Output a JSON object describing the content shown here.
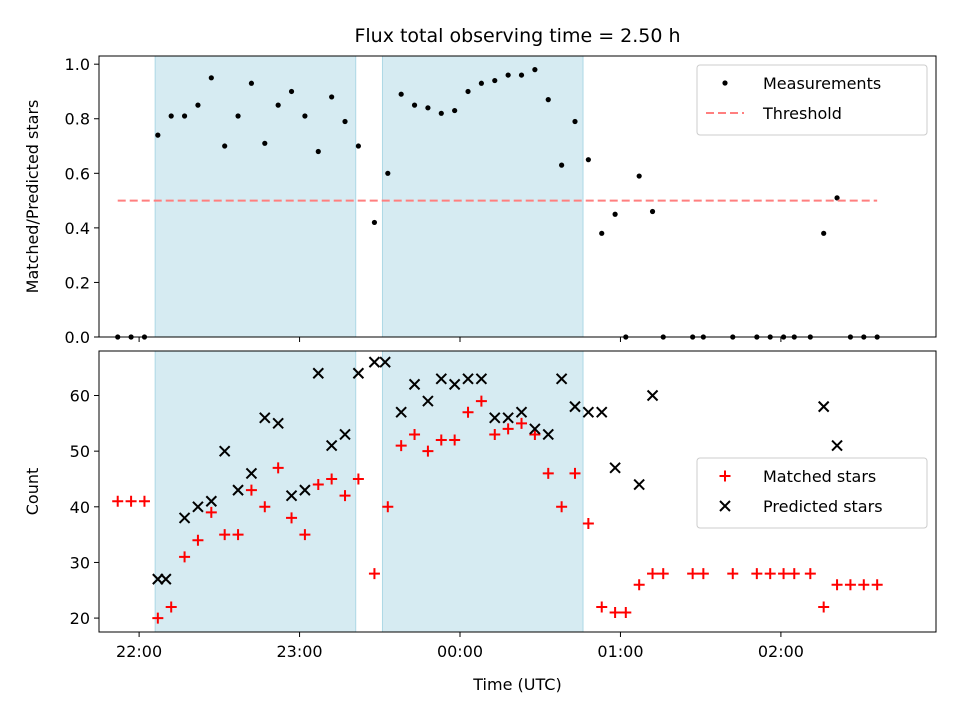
{
  "chart_data": [
    {
      "type": "scatter",
      "title": "Flux total observing time = 2.50 h",
      "xlabel": "",
      "ylabel": "Matched/Predicted stars",
      "xlim": [
        "21:45",
        "02:58"
      ],
      "ylim": [
        0,
        1.03
      ],
      "yticks": [
        "0.0",
        "0.2",
        "0.4",
        "0.6",
        "0.8",
        "1.0"
      ],
      "grid": false,
      "legend_position": "top-right",
      "shaded_intervals": [
        [
          "22:06",
          "23:21"
        ],
        [
          "23:31",
          "00:46"
        ]
      ],
      "shade_color": "#add8e6",
      "series": [
        {
          "name": "Measurements",
          "marker": "dot",
          "color": "#000000",
          "points": [
            [
              "21:52",
              0.0
            ],
            [
              "21:57",
              0.0
            ],
            [
              "22:02",
              0.0
            ],
            [
              "22:07",
              0.74
            ],
            [
              "22:12",
              0.81
            ],
            [
              "22:17",
              0.81
            ],
            [
              "22:22",
              0.85
            ],
            [
              "22:27",
              0.95
            ],
            [
              "22:32",
              0.7
            ],
            [
              "22:37",
              0.81
            ],
            [
              "22:42",
              0.93
            ],
            [
              "22:47",
              0.71
            ],
            [
              "22:52",
              0.85
            ],
            [
              "22:57",
              0.9
            ],
            [
              "23:02",
              0.81
            ],
            [
              "23:07",
              0.68
            ],
            [
              "23:12",
              0.88
            ],
            [
              "23:17",
              0.79
            ],
            [
              "23:22",
              0.7
            ],
            [
              "23:28",
              0.42
            ],
            [
              "23:33",
              0.6
            ],
            [
              "23:38",
              0.89
            ],
            [
              "23:43",
              0.85
            ],
            [
              "23:48",
              0.84
            ],
            [
              "23:53",
              0.82
            ],
            [
              "23:58",
              0.83
            ],
            [
              "00:03",
              0.9
            ],
            [
              "00:08",
              0.93
            ],
            [
              "00:13",
              0.94
            ],
            [
              "00:18",
              0.96
            ],
            [
              "00:23",
              0.96
            ],
            [
              "00:28",
              0.98
            ],
            [
              "00:33",
              0.87
            ],
            [
              "00:38",
              0.63
            ],
            [
              "00:43",
              0.79
            ],
            [
              "00:48",
              0.65
            ],
            [
              "00:53",
              0.38
            ],
            [
              "00:58",
              0.45
            ],
            [
              "01:02",
              0.0
            ],
            [
              "01:07",
              0.59
            ],
            [
              "01:12",
              0.46
            ],
            [
              "01:16",
              0.0
            ],
            [
              "01:27",
              0.0
            ],
            [
              "01:31",
              0.0
            ],
            [
              "01:42",
              0.0
            ],
            [
              "01:51",
              0.0
            ],
            [
              "01:56",
              0.0
            ],
            [
              "02:01",
              0.0
            ],
            [
              "02:05",
              0.0
            ],
            [
              "02:11",
              0.0
            ],
            [
              "02:16",
              0.38
            ],
            [
              "02:21",
              0.51
            ],
            [
              "02:26",
              0.0
            ],
            [
              "02:31",
              0.0
            ],
            [
              "02:36",
              0.0
            ]
          ]
        },
        {
          "name": "Threshold",
          "marker": "dashed-line",
          "color": "#ff7f7f",
          "points": [
            [
              "21:52",
              0.5
            ],
            [
              "02:36",
              0.5
            ]
          ]
        }
      ]
    },
    {
      "type": "scatter",
      "title": "",
      "xlabel": "Time (UTC)",
      "ylabel": "Count",
      "xlim": [
        "21:45",
        "02:58"
      ],
      "ylim": [
        17.5,
        68
      ],
      "xticks": [
        "22:00",
        "23:00",
        "00:00",
        "01:00",
        "02:00"
      ],
      "yticks": [
        "20",
        "30",
        "40",
        "50",
        "60"
      ],
      "grid": false,
      "legend_position": "center-right",
      "shaded_intervals": [
        [
          "22:06",
          "23:21"
        ],
        [
          "23:31",
          "00:46"
        ]
      ],
      "shade_color": "#add8e6",
      "series": [
        {
          "name": "Matched stars",
          "marker": "plus",
          "color": "#ff0000",
          "points": [
            [
              "21:52",
              41
            ],
            [
              "21:57",
              41
            ],
            [
              "22:02",
              41
            ],
            [
              "22:07",
              20
            ],
            [
              "22:12",
              22
            ],
            [
              "22:17",
              31
            ],
            [
              "22:22",
              34
            ],
            [
              "22:27",
              39
            ],
            [
              "22:32",
              35
            ],
            [
              "22:37",
              35
            ],
            [
              "22:42",
              43
            ],
            [
              "22:47",
              40
            ],
            [
              "22:52",
              47
            ],
            [
              "22:57",
              38
            ],
            [
              "23:02",
              35
            ],
            [
              "23:07",
              44
            ],
            [
              "23:12",
              45
            ],
            [
              "23:17",
              42
            ],
            [
              "23:22",
              45
            ],
            [
              "23:28",
              28
            ],
            [
              "23:33",
              40
            ],
            [
              "23:38",
              51
            ],
            [
              "23:43",
              53
            ],
            [
              "23:48",
              50
            ],
            [
              "23:53",
              52
            ],
            [
              "23:58",
              52
            ],
            [
              "00:03",
              57
            ],
            [
              "00:08",
              59
            ],
            [
              "00:13",
              53
            ],
            [
              "00:18",
              54
            ],
            [
              "00:23",
              55
            ],
            [
              "00:28",
              53
            ],
            [
              "00:33",
              46
            ],
            [
              "00:38",
              40
            ],
            [
              "00:43",
              46
            ],
            [
              "00:48",
              37
            ],
            [
              "00:53",
              22
            ],
            [
              "00:58",
              21
            ],
            [
              "01:02",
              21
            ],
            [
              "01:07",
              26
            ],
            [
              "01:12",
              28
            ],
            [
              "01:16",
              28
            ],
            [
              "01:27",
              28
            ],
            [
              "01:31",
              28
            ],
            [
              "01:42",
              28
            ],
            [
              "01:51",
              28
            ],
            [
              "01:56",
              28
            ],
            [
              "02:01",
              28
            ],
            [
              "02:05",
              28
            ],
            [
              "02:11",
              28
            ],
            [
              "02:16",
              22
            ],
            [
              "02:21",
              26
            ],
            [
              "02:26",
              26
            ],
            [
              "02:31",
              26
            ],
            [
              "02:36",
              26
            ]
          ]
        },
        {
          "name": "Predicted stars",
          "marker": "x",
          "color": "#000000",
          "points": [
            [
              "22:07",
              27
            ],
            [
              "22:10",
              27
            ],
            [
              "22:17",
              38
            ],
            [
              "22:22",
              40
            ],
            [
              "22:27",
              41
            ],
            [
              "22:32",
              50
            ],
            [
              "22:37",
              43
            ],
            [
              "22:42",
              46
            ],
            [
              "22:47",
              56
            ],
            [
              "22:52",
              55
            ],
            [
              "22:57",
              42
            ],
            [
              "23:02",
              43
            ],
            [
              "23:07",
              64
            ],
            [
              "23:12",
              51
            ],
            [
              "23:17",
              53
            ],
            [
              "23:22",
              64
            ],
            [
              "23:28",
              66
            ],
            [
              "23:32",
              66
            ],
            [
              "23:38",
              57
            ],
            [
              "23:43",
              62
            ],
            [
              "23:48",
              59
            ],
            [
              "23:53",
              63
            ],
            [
              "23:58",
              62
            ],
            [
              "00:03",
              63
            ],
            [
              "00:08",
              63
            ],
            [
              "00:13",
              56
            ],
            [
              "00:18",
              56
            ],
            [
              "00:23",
              57
            ],
            [
              "00:28",
              54
            ],
            [
              "00:33",
              53
            ],
            [
              "00:38",
              63
            ],
            [
              "00:43",
              58
            ],
            [
              "00:48",
              57
            ],
            [
              "00:53",
              57
            ],
            [
              "00:58",
              47
            ],
            [
              "01:07",
              44
            ],
            [
              "01:12",
              60
            ],
            [
              "02:16",
              58
            ],
            [
              "02:21",
              51
            ]
          ]
        }
      ]
    }
  ]
}
